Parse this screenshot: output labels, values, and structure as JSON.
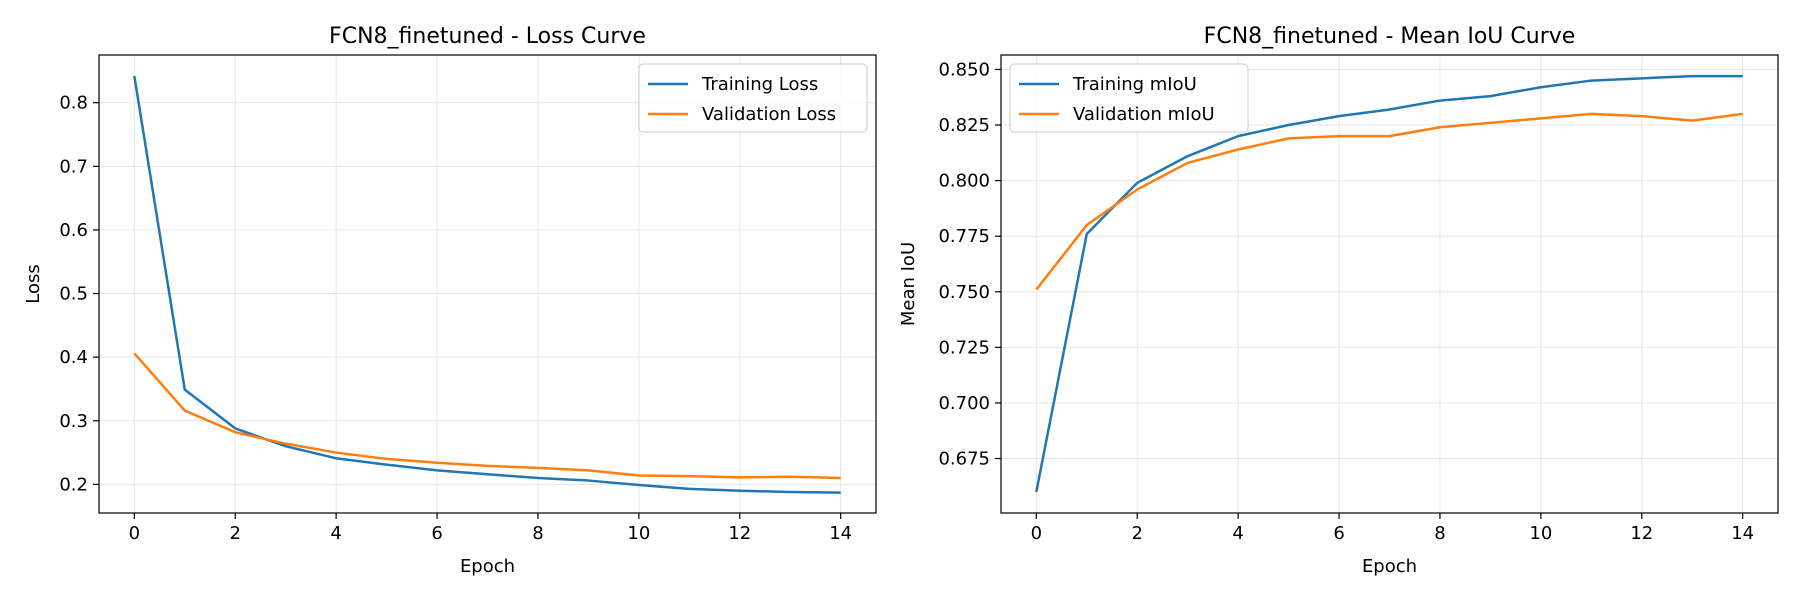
{
  "chart_data": [
    {
      "type": "line",
      "title": "FCN8_finetuned - Loss Curve",
      "xlabel": "Epoch",
      "ylabel": "Loss",
      "x": [
        0,
        1,
        2,
        3,
        4,
        5,
        6,
        7,
        8,
        9,
        10,
        11,
        12,
        13,
        14
      ],
      "xticks": [
        0,
        2,
        4,
        6,
        8,
        10,
        12,
        14
      ],
      "xtick_labels": [
        "0",
        "2",
        "4",
        "6",
        "8",
        "10",
        "12",
        "14"
      ],
      "xlim": [
        -0.7,
        14.7
      ],
      "yticks": [
        0.2,
        0.3,
        0.4,
        0.5,
        0.6,
        0.7,
        0.8
      ],
      "ytick_labels": [
        "0.2",
        "0.3",
        "0.4",
        "0.5",
        "0.6",
        "0.7",
        "0.8"
      ],
      "ylim": [
        0.155,
        0.875
      ],
      "grid": true,
      "legend_position": "upper right",
      "series": [
        {
          "name": "Training Loss",
          "color": "#1f77b4",
          "values": [
            0.842,
            0.349,
            0.288,
            0.26,
            0.241,
            0.231,
            0.222,
            0.216,
            0.21,
            0.206,
            0.199,
            0.193,
            0.19,
            0.188,
            0.187
          ]
        },
        {
          "name": "Validation Loss",
          "color": "#ff7f0e",
          "values": [
            0.406,
            0.316,
            0.282,
            0.264,
            0.25,
            0.24,
            0.234,
            0.229,
            0.226,
            0.222,
            0.214,
            0.213,
            0.211,
            0.212,
            0.21
          ]
        }
      ]
    },
    {
      "type": "line",
      "title": "FCN8_finetuned - Mean IoU Curve",
      "xlabel": "Epoch",
      "ylabel": "Mean IoU",
      "x": [
        0,
        1,
        2,
        3,
        4,
        5,
        6,
        7,
        8,
        9,
        10,
        11,
        12,
        13,
        14
      ],
      "xticks": [
        0,
        2,
        4,
        6,
        8,
        10,
        12,
        14
      ],
      "xtick_labels": [
        "0",
        "2",
        "4",
        "6",
        "8",
        "10",
        "12",
        "14"
      ],
      "xlim": [
        -0.7,
        14.7
      ],
      "yticks": [
        0.675,
        0.7,
        0.725,
        0.75,
        0.775,
        0.8,
        0.825,
        0.85
      ],
      "ytick_labels": [
        "0.675",
        "0.700",
        "0.725",
        "0.750",
        "0.775",
        "0.800",
        "0.825",
        "0.850"
      ],
      "ylim": [
        0.6505,
        0.8565
      ],
      "grid": true,
      "legend_position": "upper left",
      "series": [
        {
          "name": "Training mIoU",
          "color": "#1f77b4",
          "values": [
            0.66,
            0.776,
            0.799,
            0.811,
            0.82,
            0.825,
            0.829,
            0.832,
            0.836,
            0.838,
            0.842,
            0.845,
            0.846,
            0.847,
            0.847
          ]
        },
        {
          "name": "Validation mIoU",
          "color": "#ff7f0e",
          "values": [
            0.751,
            0.78,
            0.796,
            0.808,
            0.814,
            0.819,
            0.82,
            0.82,
            0.824,
            0.826,
            0.828,
            0.83,
            0.829,
            0.827,
            0.83
          ]
        }
      ]
    }
  ]
}
